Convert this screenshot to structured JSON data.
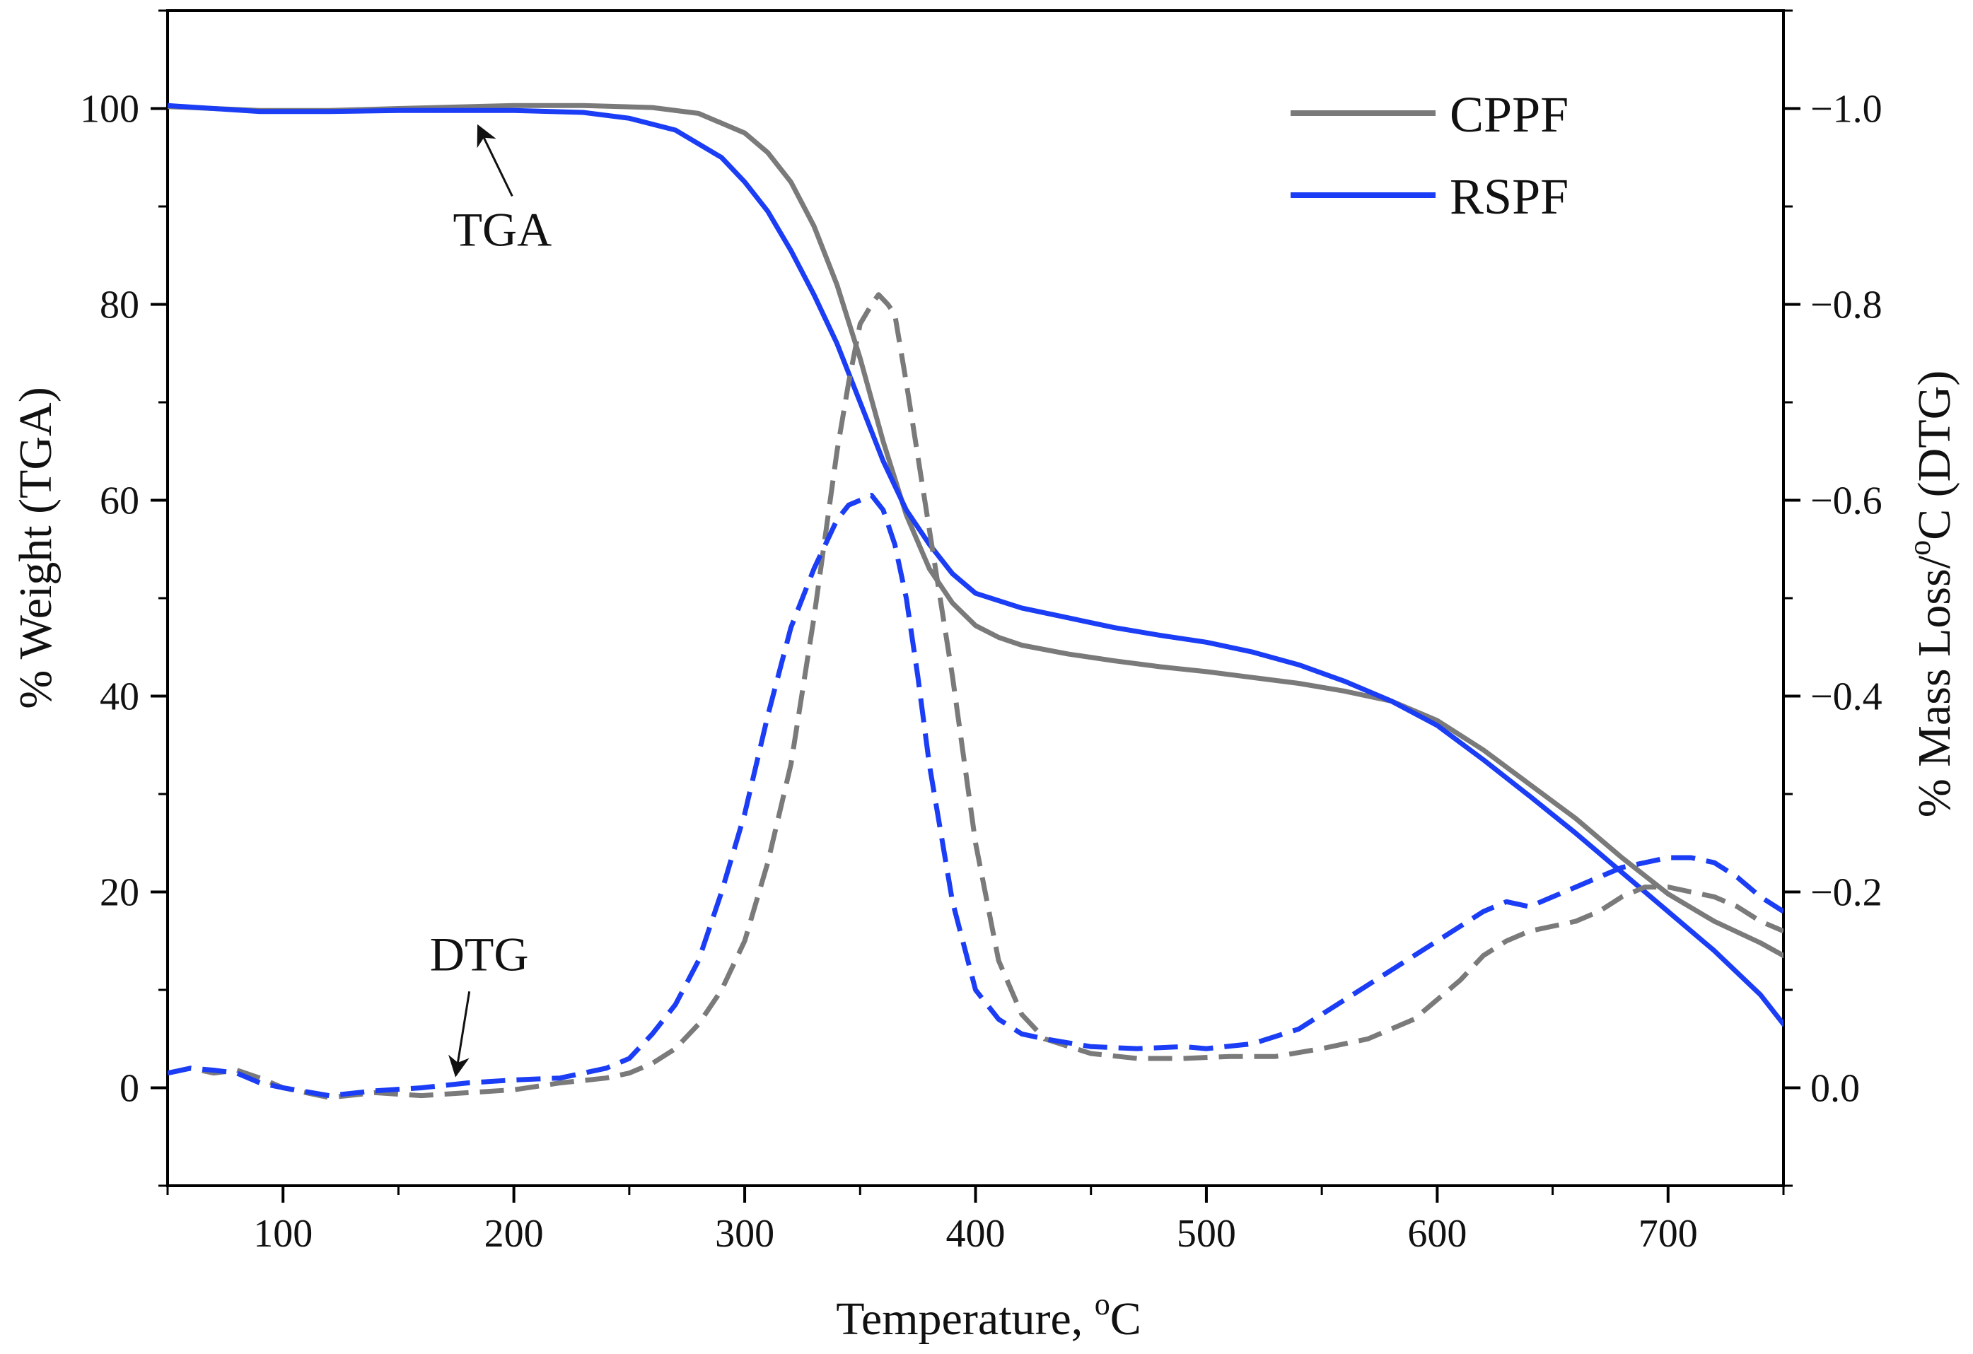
{
  "chart_data": {
    "type": "line",
    "xlabel": "Temperature, ",
    "xlabel_sup": "o",
    "xlabel_end": "C",
    "ylabel": "% Weight (TGA)",
    "y2label": "% Mass Loss/",
    "y2label_sup": "o",
    "y2label_end": "C (DTG)",
    "xlim": [
      50,
      750
    ],
    "ylim": [
      -10,
      110
    ],
    "y2lim": [
      0.1,
      -1.1
    ],
    "x_ticks": [
      "100",
      "200",
      "300",
      "400",
      "500",
      "600",
      "700"
    ],
    "y_ticks": [
      "0",
      "20",
      "40",
      "60",
      "80",
      "100"
    ],
    "y2_ticks": [
      "0.0",
      "−0.2",
      "−0.4",
      "−0.6",
      "−0.8",
      "−1.0"
    ],
    "y2_tick_values": [
      0.0,
      -0.2,
      -0.4,
      -0.6,
      -0.8,
      -1.0
    ],
    "legend_position": "top-right",
    "colors": {
      "CPPF": "#7a7a7a",
      "RSPF": "#1a3df5"
    },
    "annotations": [
      {
        "text": "TGA",
        "x": 195,
        "y": 86,
        "arrow_to": [
          185,
          98
        ]
      },
      {
        "text": "DTG",
        "x": 185,
        "y": 12,
        "arrow_to": [
          175,
          1.5
        ]
      }
    ],
    "series": [
      {
        "name": "CPPF",
        "kind": "TGA",
        "axis": "left",
        "style": "solid",
        "x": [
          50,
          70,
          90,
          120,
          150,
          200,
          230,
          260,
          280,
          300,
          310,
          320,
          330,
          340,
          350,
          360,
          370,
          380,
          390,
          400,
          410,
          420,
          440,
          460,
          480,
          500,
          520,
          540,
          560,
          580,
          600,
          620,
          640,
          660,
          680,
          700,
          720,
          740,
          750
        ],
        "y": [
          100.2,
          100.0,
          99.8,
          99.8,
          100.0,
          100.3,
          100.3,
          100.1,
          99.5,
          97.5,
          95.5,
          92.5,
          88.0,
          82.0,
          74.5,
          66.0,
          58.5,
          53.0,
          49.5,
          47.2,
          46.0,
          45.2,
          44.3,
          43.6,
          43.0,
          42.5,
          41.9,
          41.3,
          40.5,
          39.5,
          37.5,
          34.5,
          31.0,
          27.5,
          23.5,
          19.8,
          17.0,
          14.8,
          13.5
        ]
      },
      {
        "name": "RSPF",
        "kind": "TGA",
        "axis": "left",
        "style": "solid",
        "x": [
          50,
          70,
          90,
          120,
          150,
          200,
          230,
          250,
          270,
          290,
          300,
          310,
          320,
          330,
          340,
          350,
          360,
          370,
          380,
          390,
          400,
          420,
          440,
          460,
          480,
          500,
          520,
          540,
          560,
          580,
          600,
          620,
          640,
          660,
          680,
          700,
          720,
          740,
          750
        ],
        "y": [
          100.3,
          100.0,
          99.7,
          99.7,
          99.8,
          99.8,
          99.6,
          99.0,
          97.8,
          95.0,
          92.5,
          89.5,
          85.5,
          81.0,
          76.0,
          70.0,
          64.0,
          59.0,
          55.5,
          52.5,
          50.5,
          49.0,
          48.0,
          47.0,
          46.2,
          45.5,
          44.5,
          43.2,
          41.5,
          39.5,
          37.0,
          33.5,
          29.8,
          26.0,
          22.0,
          18.0,
          14.0,
          9.5,
          6.5
        ]
      },
      {
        "name": "CPPF",
        "kind": "DTG",
        "axis": "right",
        "style": "dashed",
        "x": [
          50,
          60,
          70,
          80,
          90,
          100,
          120,
          140,
          160,
          180,
          200,
          220,
          240,
          250,
          260,
          270,
          280,
          290,
          300,
          310,
          320,
          330,
          340,
          345,
          350,
          355,
          358,
          362,
          365,
          370,
          380,
          390,
          400,
          410,
          420,
          430,
          450,
          470,
          490,
          510,
          530,
          550,
          570,
          590,
          610,
          620,
          630,
          640,
          650,
          660,
          670,
          680,
          690,
          700,
          710,
          720,
          730,
          740,
          750
        ],
        "y": [
          -0.015,
          -0.02,
          -0.015,
          -0.018,
          -0.01,
          0.0,
          0.01,
          0.005,
          0.008,
          0.005,
          0.002,
          -0.005,
          -0.01,
          -0.015,
          -0.025,
          -0.04,
          -0.065,
          -0.1,
          -0.15,
          -0.23,
          -0.33,
          -0.48,
          -0.65,
          -0.72,
          -0.78,
          -0.8,
          -0.81,
          -0.8,
          -0.79,
          -0.72,
          -0.57,
          -0.42,
          -0.25,
          -0.13,
          -0.075,
          -0.05,
          -0.035,
          -0.03,
          -0.03,
          -0.032,
          -0.032,
          -0.04,
          -0.05,
          -0.07,
          -0.11,
          -0.135,
          -0.15,
          -0.16,
          -0.165,
          -0.17,
          -0.18,
          -0.195,
          -0.205,
          -0.205,
          -0.2,
          -0.195,
          -0.185,
          -0.17,
          -0.16
        ]
      },
      {
        "name": "RSPF",
        "kind": "DTG",
        "axis": "right",
        "style": "dashed",
        "x": [
          50,
          60,
          70,
          80,
          90,
          100,
          120,
          140,
          160,
          180,
          200,
          220,
          240,
          250,
          260,
          270,
          280,
          290,
          300,
          310,
          320,
          330,
          340,
          345,
          350,
          355,
          360,
          365,
          370,
          375,
          380,
          390,
          400,
          410,
          420,
          430,
          450,
          470,
          490,
          500,
          520,
          540,
          560,
          580,
          600,
          620,
          630,
          640,
          650,
          660,
          670,
          680,
          690,
          700,
          710,
          720,
          730,
          740,
          750
        ],
        "y": [
          -0.015,
          -0.02,
          -0.018,
          -0.015,
          -0.005,
          0.0,
          0.008,
          0.003,
          0.0,
          -0.005,
          -0.008,
          -0.01,
          -0.02,
          -0.03,
          -0.055,
          -0.085,
          -0.13,
          -0.2,
          -0.28,
          -0.38,
          -0.47,
          -0.53,
          -0.58,
          -0.595,
          -0.6,
          -0.605,
          -0.59,
          -0.555,
          -0.5,
          -0.42,
          -0.33,
          -0.19,
          -0.1,
          -0.07,
          -0.055,
          -0.05,
          -0.042,
          -0.04,
          -0.042,
          -0.04,
          -0.045,
          -0.06,
          -0.09,
          -0.12,
          -0.15,
          -0.18,
          -0.19,
          -0.185,
          -0.195,
          -0.205,
          -0.215,
          -0.225,
          -0.23,
          -0.235,
          -0.235,
          -0.23,
          -0.215,
          -0.195,
          -0.18
        ]
      }
    ]
  }
}
